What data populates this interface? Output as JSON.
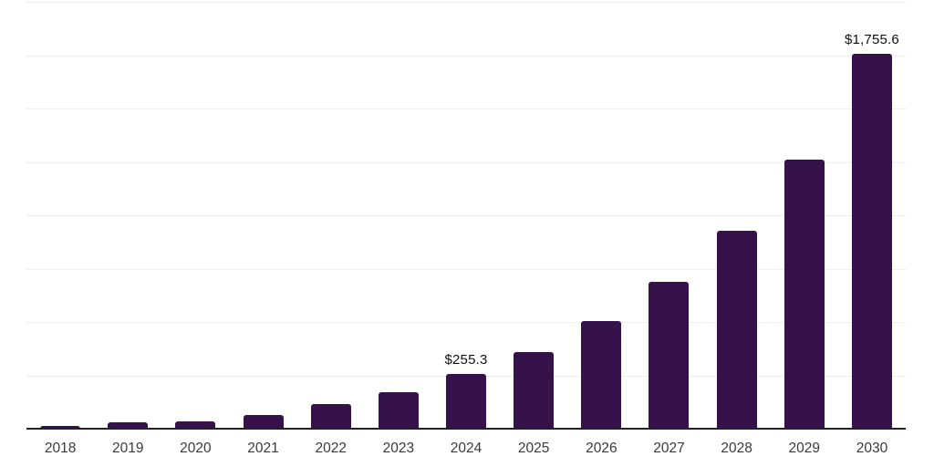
{
  "chart_data": {
    "type": "bar",
    "title": "",
    "xlabel": "",
    "ylabel": "",
    "categories": [
      "2018",
      "2019",
      "2020",
      "2021",
      "2022",
      "2023",
      "2024",
      "2025",
      "2026",
      "2027",
      "2028",
      "2029",
      "2030"
    ],
    "values": [
      12,
      29,
      35,
      65,
      115,
      172,
      255.3,
      359,
      505,
      688,
      927,
      1260,
      1755.6
    ],
    "data_labels": [
      "",
      "",
      "",
      "",
      "",
      "",
      "$255.3",
      "",
      "",
      "",
      "",
      "",
      "$1,755.6"
    ],
    "ylim": [
      0,
      2000
    ],
    "gridline_step": 250,
    "grid": "horizontal only, no y-axis tick labels",
    "legend": "none"
  },
  "colors": {
    "bar_fill": "#35124a",
    "gridline": "#efefef",
    "axis_line": "#222222",
    "x_label_text": "#3a3a3a",
    "data_label_text": "#111111",
    "background": "#ffffff"
  }
}
